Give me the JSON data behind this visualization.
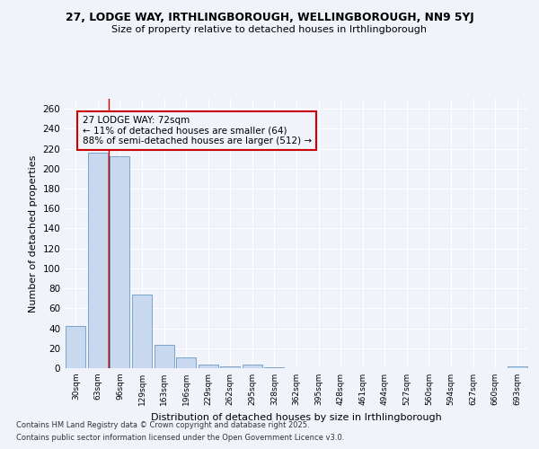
{
  "title1": "27, LODGE WAY, IRTHLINGBOROUGH, WELLINGBOROUGH, NN9 5YJ",
  "title2": "Size of property relative to detached houses in Irthlingborough",
  "xlabel": "Distribution of detached houses by size in Irthlingborough",
  "ylabel": "Number of detached properties",
  "categories": [
    "30sqm",
    "63sqm",
    "96sqm",
    "129sqm",
    "163sqm",
    "196sqm",
    "229sqm",
    "262sqm",
    "295sqm",
    "328sqm",
    "362sqm",
    "395sqm",
    "428sqm",
    "461sqm",
    "494sqm",
    "527sqm",
    "560sqm",
    "594sqm",
    "627sqm",
    "660sqm",
    "693sqm"
  ],
  "values": [
    42,
    216,
    212,
    74,
    23,
    11,
    4,
    2,
    4,
    1,
    0,
    0,
    0,
    0,
    0,
    0,
    0,
    0,
    0,
    0,
    2
  ],
  "bar_color": "#c8d8ef",
  "bar_edge_color": "#7ba4cc",
  "vline_x": 1.5,
  "vline_color": "#cc0000",
  "annotation_line1": "27 LODGE WAY: 72sqm",
  "annotation_line2": "← 11% of detached houses are smaller (64)",
  "annotation_line3": "88% of semi-detached houses are larger (512) →",
  "box_edge_color": "#cc0000",
  "ylim": [
    0,
    270
  ],
  "yticks": [
    0,
    20,
    40,
    60,
    80,
    100,
    120,
    140,
    160,
    180,
    200,
    220,
    240,
    260
  ],
  "background_color": "#f0f4fa",
  "grid_color": "#ffffff",
  "footnote1": "Contains HM Land Registry data © Crown copyright and database right 2025.",
  "footnote2": "Contains public sector information licensed under the Open Government Licence v3.0."
}
